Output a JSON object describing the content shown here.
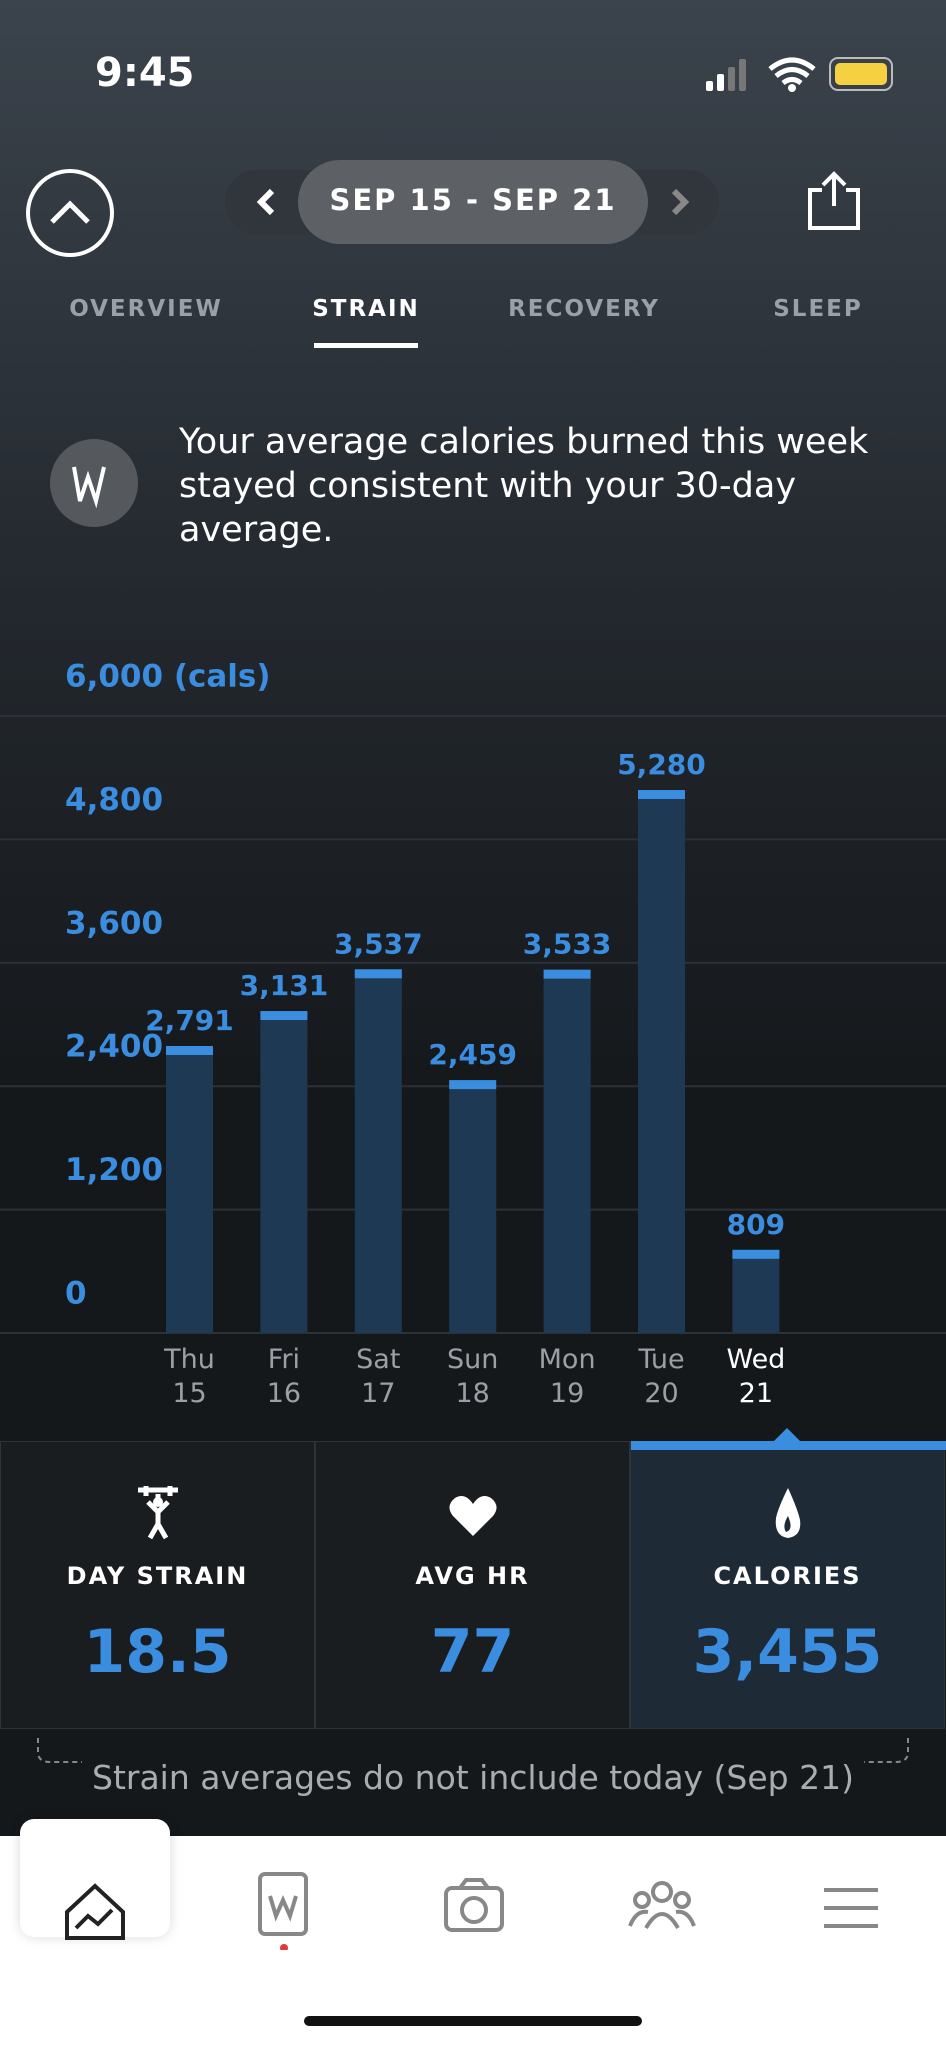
{
  "status_bar": {
    "time": "9:45"
  },
  "header": {
    "date_range": "SEP 15 - SEP 21"
  },
  "tabs": [
    "OVERVIEW",
    "STRAIN",
    "RECOVERY",
    "SLEEP"
  ],
  "active_tab": 1,
  "insight": {
    "text": "Your average calories burned this week stayed consistent with your 30-day average."
  },
  "chart_data": {
    "type": "bar",
    "categories": [
      "Thu 15",
      "Fri 16",
      "Sat 17",
      "Sun 18",
      "Mon 19",
      "Tue 20",
      "Wed 21"
    ],
    "values": [
      2791,
      3131,
      3537,
      2459,
      3533,
      5280,
      809
    ],
    "value_labels": [
      "2,791",
      "3,131",
      "3,537",
      "2,459",
      "3,533",
      "5,280",
      "809"
    ],
    "color": "#1d3954",
    "cap_color": "#3b8de0",
    "ylim": [
      0,
      6000
    ],
    "yticks": [
      0,
      {
        "value": 1200,
        "label": "1,200"
      },
      {
        "value": 2400,
        "label": "2,400"
      },
      {
        "value": 3600,
        "label": "3,600"
      },
      {
        "value": 4800,
        "label": "4,800"
      },
      {
        "value": 6000,
        "label": "6,000 (cals)"
      }
    ],
    "grid": true,
    "selected_index": 6
  },
  "stats": [
    {
      "label": "DAY STRAIN",
      "value": 18.5
    },
    {
      "label": "AVG HR",
      "value": 77
    },
    {
      "label": "CALORIES",
      "value": "3,455"
    }
  ],
  "selected_stat": 2,
  "note": "Strain averages do not include today (Sep 21)"
}
